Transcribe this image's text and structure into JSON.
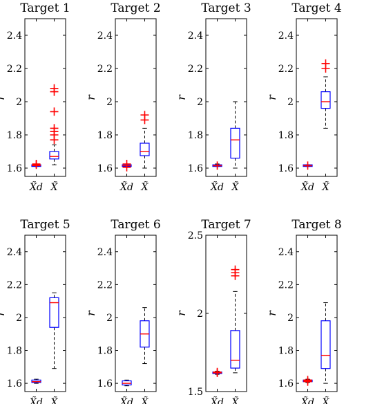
{
  "chart_data": [
    {
      "type": "box",
      "title": "Target 1",
      "ylabel": "r",
      "categories": [
        "X̃d",
        "X̃"
      ],
      "ylim": [
        1.55,
        2.5
      ],
      "yticks": [
        "1.6",
        "1.8",
        "2",
        "2.2",
        "2.4"
      ],
      "boxes": [
        {
          "min": 1.61,
          "q1": 1.61,
          "median": 1.615,
          "q3": 1.62,
          "max": 1.625,
          "outliers": [
            1.62,
            1.625
          ]
        },
        {
          "min": 1.62,
          "q1": 1.655,
          "median": 1.67,
          "q3": 1.7,
          "max": 1.74,
          "outliers": [
            1.77,
            1.8,
            1.82,
            1.84,
            1.94,
            2.06,
            2.08
          ]
        }
      ]
    },
    {
      "type": "box",
      "title": "Target 2",
      "ylabel": "r",
      "categories": [
        "X̃d",
        "X̃"
      ],
      "ylim": [
        1.55,
        2.5
      ],
      "yticks": [
        "1.6",
        "1.8",
        "2",
        "2.2",
        "2.4"
      ],
      "boxes": [
        {
          "min": 1.605,
          "q1": 1.61,
          "median": 1.615,
          "q3": 1.62,
          "max": 1.625,
          "outliers": [
            1.605,
            1.625
          ]
        },
        {
          "min": 1.6,
          "q1": 1.675,
          "median": 1.7,
          "q3": 1.75,
          "max": 1.84,
          "outliers": [
            1.89,
            1.92
          ]
        }
      ]
    },
    {
      "type": "box",
      "title": "Target 3",
      "ylabel": "r",
      "categories": [
        "X̃d",
        "X̃"
      ],
      "ylim": [
        1.55,
        2.5
      ],
      "yticks": [
        "1.6",
        "1.8",
        "2",
        "2.2",
        "2.4"
      ],
      "boxes": [
        {
          "min": 1.61,
          "q1": 1.61,
          "median": 1.615,
          "q3": 1.62,
          "max": 1.625,
          "outliers": [
            1.615
          ]
        },
        {
          "min": 1.6,
          "q1": 1.66,
          "median": 1.77,
          "q3": 1.84,
          "max": 2.0,
          "outliers": []
        }
      ]
    },
    {
      "type": "box",
      "title": "Target 4",
      "ylabel": "r",
      "categories": [
        "X̃d",
        "X̃"
      ],
      "ylim": [
        1.55,
        2.5
      ],
      "yticks": [
        "1.6",
        "1.8",
        "2",
        "2.2",
        "2.4"
      ],
      "boxes": [
        {
          "min": 1.61,
          "q1": 1.61,
          "median": 1.615,
          "q3": 1.62,
          "max": 1.62,
          "outliers": [
            1.615
          ]
        },
        {
          "min": 1.84,
          "q1": 1.96,
          "median": 2.0,
          "q3": 2.06,
          "max": 2.15,
          "outliers": [
            2.2,
            2.23
          ]
        }
      ]
    },
    {
      "type": "box",
      "title": "Target 5",
      "ylabel": "r",
      "categories": [
        "X̃d",
        "X̃"
      ],
      "ylim": [
        1.55,
        2.5
      ],
      "yticks": [
        "1.6",
        "1.8",
        "2",
        "2.2",
        "2.4"
      ],
      "boxes": [
        {
          "min": 1.6,
          "q1": 1.605,
          "median": 1.61,
          "q3": 1.62,
          "max": 1.625,
          "outliers": []
        },
        {
          "min": 1.69,
          "q1": 1.94,
          "median": 2.09,
          "q3": 2.12,
          "max": 2.15,
          "outliers": []
        }
      ]
    },
    {
      "type": "box",
      "title": "Target 6",
      "ylabel": "r",
      "categories": [
        "X̃d",
        "X̃"
      ],
      "ylim": [
        1.55,
        2.5
      ],
      "yticks": [
        "1.6",
        "1.8",
        "2",
        "2.2",
        "2.4"
      ],
      "boxes": [
        {
          "min": 1.585,
          "q1": 1.59,
          "median": 1.6,
          "q3": 1.615,
          "max": 1.62,
          "outliers": []
        },
        {
          "min": 1.72,
          "q1": 1.82,
          "median": 1.9,
          "q3": 1.98,
          "max": 2.06,
          "outliers": []
        }
      ]
    },
    {
      "type": "box",
      "title": "Target 7",
      "ylabel": "r",
      "categories": [
        "X̃d",
        "X̃"
      ],
      "ylim": [
        1.5,
        2.5
      ],
      "yticks": [
        "1.5",
        "2",
        "2.5"
      ],
      "boxes": [
        {
          "min": 1.61,
          "q1": 1.615,
          "median": 1.62,
          "q3": 1.625,
          "max": 1.63,
          "outliers": [
            1.62,
            1.625
          ]
        },
        {
          "min": 1.62,
          "q1": 1.65,
          "median": 1.7,
          "q3": 1.89,
          "max": 2.14,
          "outliers": [
            2.24,
            2.26,
            2.28
          ]
        }
      ]
    },
    {
      "type": "box",
      "title": "Target 8",
      "ylabel": "r",
      "categories": [
        "X̃d",
        "X̃"
      ],
      "ylim": [
        1.55,
        2.5
      ],
      "yticks": [
        "1.6",
        "1.8",
        "2",
        "2.2",
        "2.4"
      ],
      "boxes": [
        {
          "min": 1.605,
          "q1": 1.61,
          "median": 1.615,
          "q3": 1.62,
          "max": 1.625,
          "outliers": [
            1.61,
            1.62
          ]
        },
        {
          "min": 1.6,
          "q1": 1.69,
          "median": 1.77,
          "q3": 1.98,
          "max": 2.09,
          "outliers": []
        }
      ]
    }
  ],
  "colors": {
    "box": "#0000ff",
    "median": "#ff0000",
    "outlier": "#ff0000",
    "whisker": "#000000",
    "axis": "#000000"
  }
}
